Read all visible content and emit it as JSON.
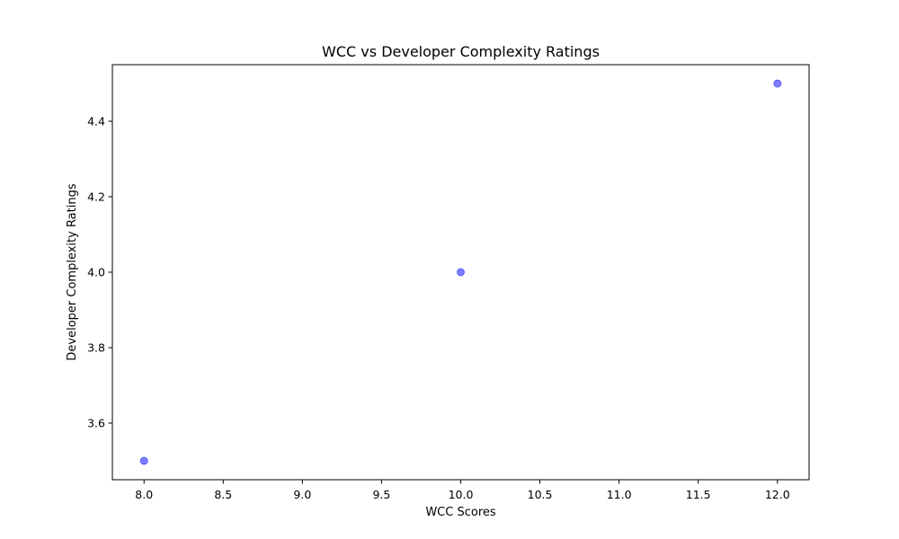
{
  "chart_data": {
    "type": "scatter",
    "title": "WCC vs Developer Complexity Ratings",
    "xlabel": "WCC Scores",
    "ylabel": "Developer Complexity Ratings",
    "xlim": [
      7.8,
      12.2
    ],
    "ylim": [
      3.45,
      4.55
    ],
    "xticks": [
      8.0,
      8.5,
      9.0,
      9.5,
      10.0,
      10.5,
      11.0,
      11.5,
      12.0
    ],
    "xtick_labels": [
      "8.0",
      "8.5",
      "9.0",
      "9.5",
      "10.0",
      "10.5",
      "11.0",
      "11.5",
      "12.0"
    ],
    "yticks": [
      3.6,
      3.8,
      4.0,
      4.2,
      4.4
    ],
    "ytick_labels": [
      "3.6",
      "3.8",
      "4.0",
      "4.2",
      "4.4"
    ],
    "grid": false,
    "series": [
      {
        "x": [
          8,
          10,
          12
        ],
        "y": [
          3.5,
          4.0,
          4.5
        ],
        "color": "#0000ff",
        "alpha": 0.5
      }
    ]
  }
}
